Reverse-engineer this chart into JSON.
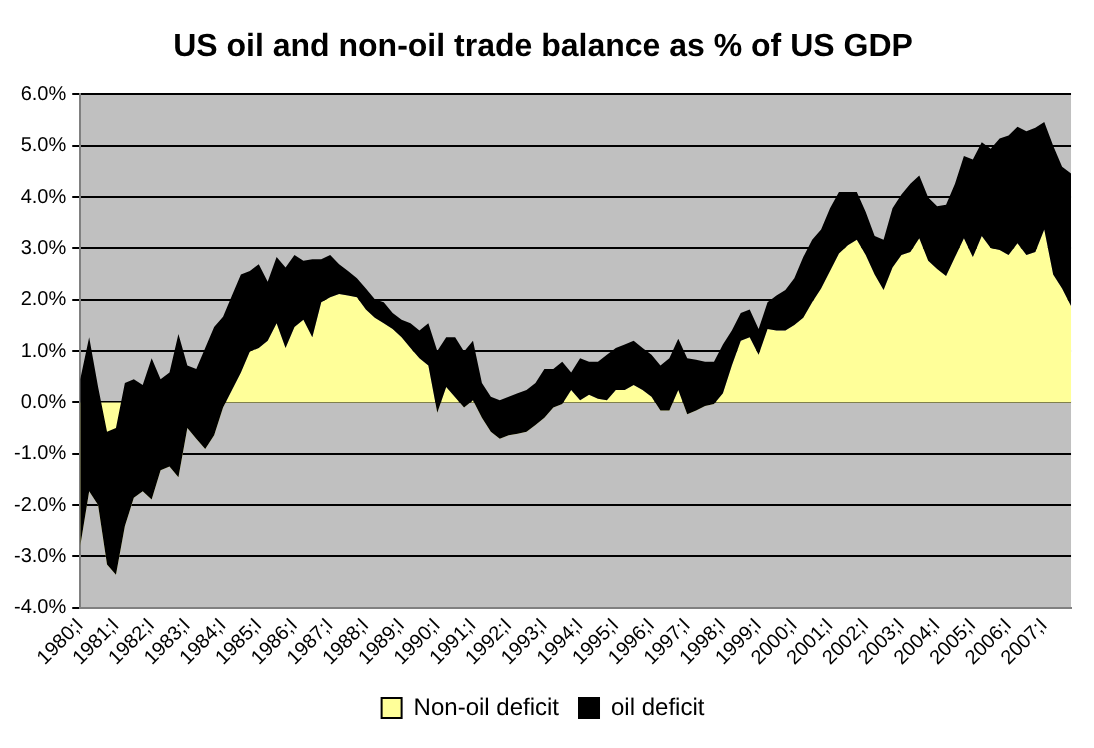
{
  "chart_data": {
    "type": "area",
    "title": "US oil and non-oil trade balance as % of US GDP",
    "stacked": true,
    "categories": [
      "1980;I",
      null,
      null,
      null,
      "1981;I",
      null,
      null,
      null,
      "1982;I",
      null,
      null,
      null,
      "1983;I",
      null,
      null,
      null,
      "1984;I",
      null,
      null,
      null,
      "1985;I",
      null,
      null,
      null,
      "1986;I",
      null,
      null,
      null,
      "1987;I",
      null,
      null,
      null,
      "1988;I",
      null,
      null,
      null,
      "1989;I",
      null,
      null,
      null,
      "1990;I",
      null,
      null,
      null,
      "1991;I",
      null,
      null,
      null,
      "1992;I",
      null,
      null,
      null,
      "1993;I",
      null,
      null,
      null,
      "1994;I",
      null,
      null,
      null,
      "1995;I",
      null,
      null,
      null,
      "1996;I",
      null,
      null,
      null,
      "1997;I",
      null,
      null,
      null,
      "1998;I",
      null,
      null,
      null,
      "1999;I",
      null,
      null,
      null,
      "2000;I",
      null,
      null,
      null,
      "2001;I",
      null,
      null,
      null,
      "2002;I",
      null,
      null,
      null,
      "2003;I",
      null,
      null,
      null,
      "2004;I",
      null,
      null,
      null,
      "2005;I",
      null,
      null,
      null,
      "2006;I",
      null,
      null,
      null,
      "2007;I",
      null,
      null,
      null
    ],
    "series": [
      {
        "name": "Non-oil deficit",
        "color": "#ffff99",
        "values": [
          -2.8,
          -1.73,
          -2.0,
          -3.16,
          -3.36,
          -2.41,
          -1.86,
          -1.73,
          -1.89,
          -1.32,
          -1.25,
          -1.46,
          -0.5,
          -0.71,
          -0.91,
          -0.64,
          -0.1,
          0.24,
          0.58,
          0.99,
          1.06,
          1.2,
          1.54,
          1.06,
          1.47,
          1.61,
          1.27,
          1.95,
          2.05,
          2.11,
          2.08,
          2.05,
          1.81,
          1.65,
          1.54,
          1.43,
          1.27,
          1.06,
          0.86,
          0.72,
          -0.2,
          0.3,
          0.1,
          -0.1,
          0.04,
          -0.3,
          -0.57,
          -0.71,
          -0.64,
          -0.61,
          -0.57,
          -0.44,
          -0.3,
          -0.1,
          -0.03,
          0.24,
          0.04,
          0.15,
          0.07,
          0.04,
          0.24,
          0.24,
          0.34,
          0.24,
          0.11,
          -0.16,
          -0.16,
          0.24,
          -0.23,
          -0.16,
          -0.07,
          -0.03,
          0.18,
          0.72,
          1.2,
          1.27,
          0.93,
          1.43,
          1.4,
          1.4,
          1.51,
          1.65,
          1.95,
          2.22,
          2.56,
          2.9,
          3.06,
          3.17,
          2.87,
          2.49,
          2.19,
          2.63,
          2.87,
          2.93,
          3.2,
          2.76,
          2.6,
          2.46,
          2.83,
          3.2,
          2.83,
          3.24,
          3.01,
          2.97,
          2.87,
          3.1,
          2.87,
          2.93,
          3.37,
          2.49,
          2.22,
          1.88
        ]
      },
      {
        "name": "oil deficit",
        "color": "#000000",
        "values": [
          3.25,
          3.0,
          2.3,
          2.59,
          2.86,
          2.79,
          2.31,
          2.07,
          2.75,
          1.77,
          1.83,
          2.79,
          1.22,
          1.36,
          1.97,
          2.11,
          1.77,
          1.84,
          1.91,
          1.57,
          1.63,
          1.15,
          1.29,
          1.57,
          1.4,
          1.15,
          1.52,
          0.84,
          0.82,
          0.58,
          0.48,
          0.37,
          0.41,
          0.36,
          0.41,
          0.31,
          0.34,
          0.48,
          0.54,
          0.82,
          1.2,
          0.97,
          1.17,
          1.09,
          1.16,
          0.68,
          0.68,
          0.75,
          0.75,
          0.79,
          0.81,
          0.82,
          0.95,
          0.75,
          0.82,
          0.34,
          0.82,
          0.64,
          0.72,
          0.89,
          0.82,
          0.89,
          0.86,
          0.82,
          0.82,
          0.88,
          1.02,
          1.0,
          1.09,
          0.99,
          0.86,
          0.82,
          0.95,
          0.68,
          0.54,
          0.54,
          0.5,
          0.52,
          0.68,
          0.79,
          0.91,
          1.18,
          1.22,
          1.15,
          1.22,
          1.2,
          1.04,
          0.93,
          0.84,
          0.75,
          0.98,
          1.15,
          1.18,
          1.33,
          1.22,
          1.23,
          1.22,
          1.39,
          1.43,
          1.6,
          1.9,
          1.83,
          1.93,
          2.17,
          2.33,
          2.27,
          2.41,
          2.42,
          2.09,
          2.51,
          2.37,
          2.58
        ]
      }
    ],
    "ylim": [
      -4,
      6
    ],
    "yticks": [
      {
        "value": -4,
        "label": "-4.0%"
      },
      {
        "value": -3,
        "label": "-3.0%"
      },
      {
        "value": -2,
        "label": "-2.0%"
      },
      {
        "value": -1,
        "label": "-1.0%"
      },
      {
        "value": 0,
        "label": "0.0%"
      },
      {
        "value": 1,
        "label": "1.0%"
      },
      {
        "value": 2,
        "label": "2.0%"
      },
      {
        "value": 3,
        "label": "3.0%"
      },
      {
        "value": 4,
        "label": "4.0%"
      },
      {
        "value": 5,
        "label": "5.0%"
      },
      {
        "value": 6,
        "label": "6.0%"
      }
    ],
    "grid": "y",
    "legend": "bottom"
  }
}
